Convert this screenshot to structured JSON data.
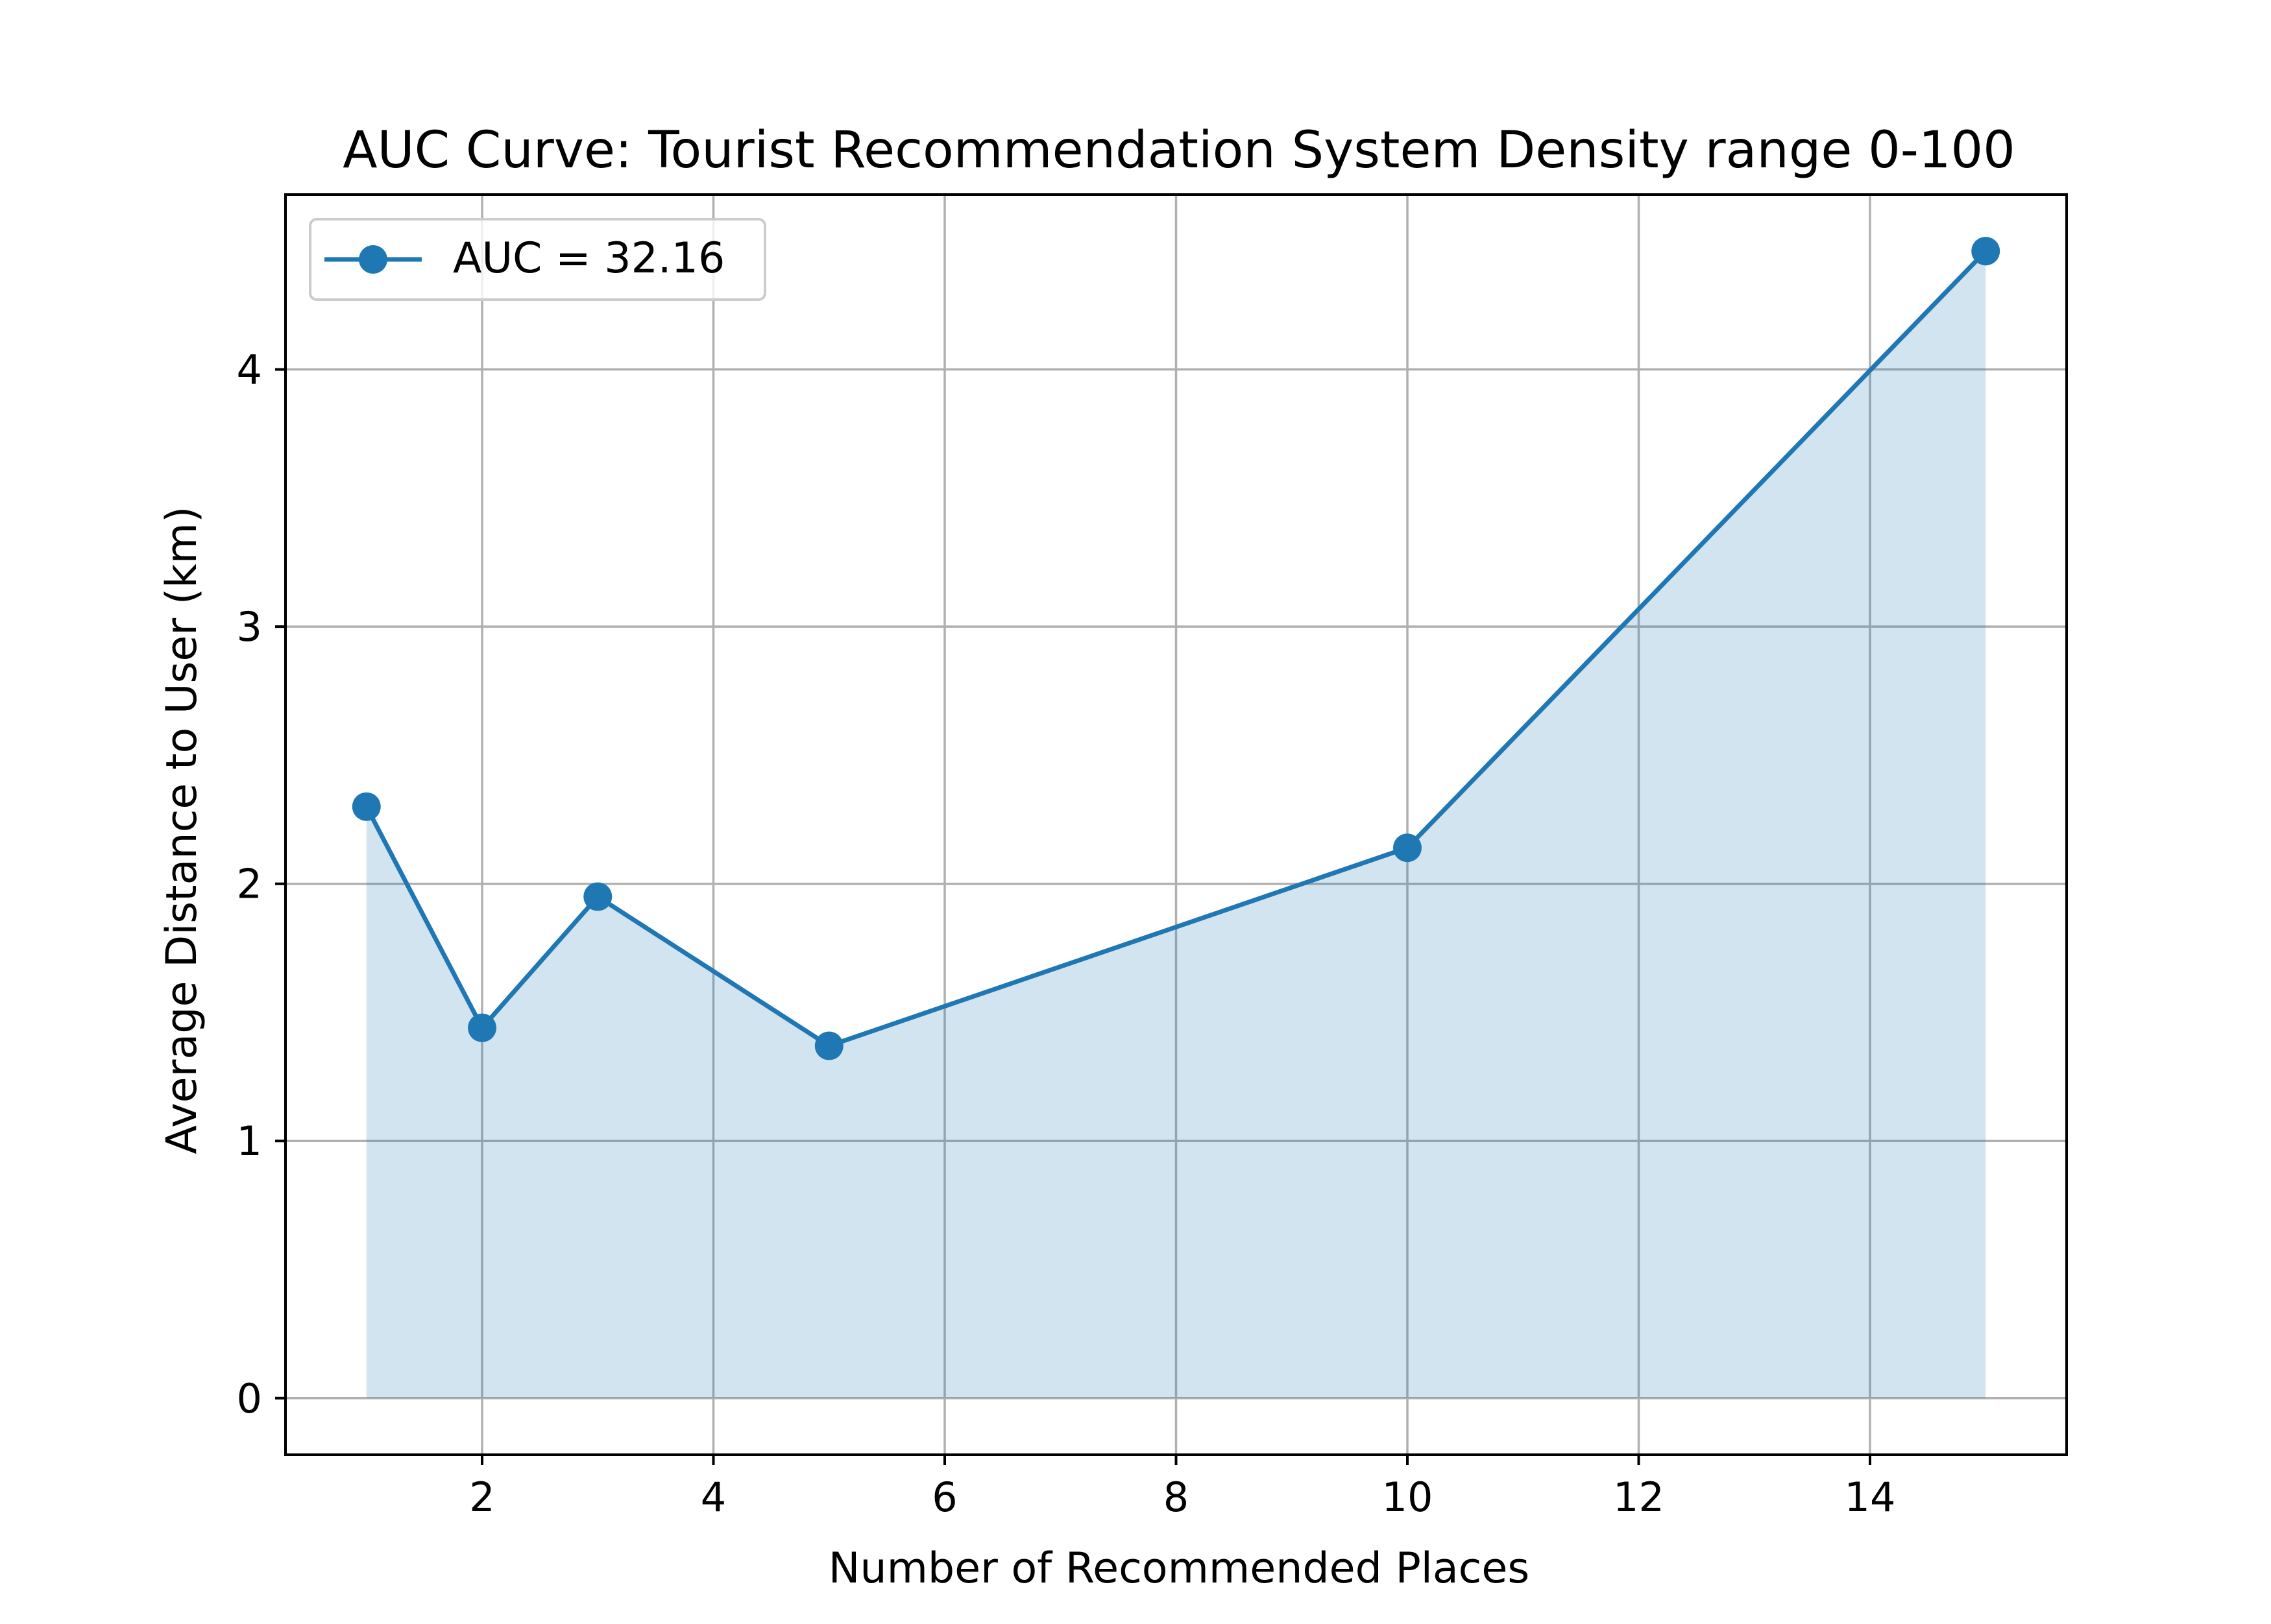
{
  "chart_data": {
    "type": "line",
    "title": "AUC Curve: Tourist Recommendation System Density range 0-100",
    "xlabel": "Number of Recommended Places",
    "ylabel": "Average Distance to User (km)",
    "x": [
      1,
      2,
      3,
      5,
      10,
      15
    ],
    "series": [
      {
        "name": "AUC = 32.16",
        "values": [
          2.3,
          1.44,
          1.95,
          1.37,
          2.14,
          4.46
        ],
        "color": "#1f77b4",
        "fill_color": "#1f77b4"
      }
    ],
    "xlim": [
      0.3,
      15.7
    ],
    "ylim": [
      -0.22,
      4.68
    ],
    "xticks": [
      2,
      4,
      6,
      8,
      10,
      12,
      14
    ],
    "yticks": [
      0,
      1,
      2,
      3,
      4
    ],
    "grid": true,
    "legend_position": "top-left",
    "fill_under_curve": true
  }
}
